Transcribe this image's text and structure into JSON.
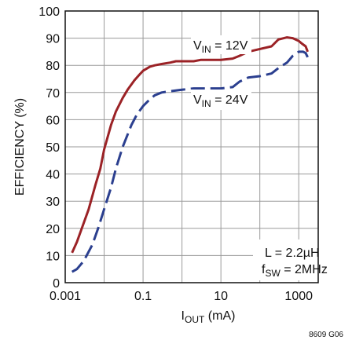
{
  "chart_data": {
    "type": "line",
    "xlabel": {
      "main": "I",
      "sub": "OUT",
      "unit": " (mA)"
    },
    "ylabel": "EFFICIENCY (%)",
    "x_scale": "log",
    "xlim": [
      0.001,
      3162
    ],
    "ylim": [
      0,
      100
    ],
    "x_ticks": [
      0.001,
      0.1,
      10,
      1000
    ],
    "x_tick_labels": [
      "0.001",
      "0.1",
      "10",
      "1000"
    ],
    "x_grid_decades": [
      0.001,
      0.01,
      0.1,
      1,
      10,
      100,
      1000
    ],
    "y_ticks": [
      0,
      10,
      20,
      30,
      40,
      50,
      60,
      70,
      80,
      90,
      100
    ],
    "y_tick_labels": [
      "0",
      "10",
      "20",
      "30",
      "40",
      "50",
      "60",
      "70",
      "80",
      "90",
      "100"
    ],
    "grid": true,
    "figure_id": "8609 G06",
    "annotation": {
      "line1": "L = 2.2µH",
      "line2_main": "f",
      "line2_sub": "SW",
      "line2_rest": " = 2MHz"
    },
    "series": [
      {
        "name": "VIN = 12V",
        "label_main": "V",
        "label_sub": "IN",
        "label_rest": " = 12V",
        "color": "#9b2226",
        "dash": "solid",
        "x": [
          0.0015,
          0.002,
          0.003,
          0.004,
          0.006,
          0.008,
          0.01,
          0.015,
          0.02,
          0.03,
          0.04,
          0.06,
          0.08,
          0.1,
          0.15,
          0.2,
          0.3,
          0.5,
          0.7,
          1,
          1.5,
          2,
          3,
          5,
          10,
          20,
          30,
          50,
          100,
          200,
          300,
          500,
          700,
          1000,
          1200,
          1500,
          1700
        ],
        "y": [
          11,
          15,
          22,
          27,
          36,
          42,
          49,
          58,
          63,
          68,
          71,
          74.5,
          76.5,
          78,
          79.5,
          80,
          80.5,
          81,
          81.5,
          81.5,
          81.5,
          81.5,
          82,
          82,
          82,
          82.5,
          83.5,
          85,
          86,
          87,
          89.5,
          90.3,
          90,
          89,
          88,
          87,
          85
        ]
      },
      {
        "name": "VIN = 24V",
        "label_main": "V",
        "label_sub": "IN",
        "label_rest": " = 24V",
        "color": "#2b3f8f",
        "dash": "dashed",
        "x": [
          0.0015,
          0.002,
          0.003,
          0.005,
          0.007,
          0.01,
          0.015,
          0.02,
          0.03,
          0.05,
          0.07,
          0.1,
          0.15,
          0.2,
          0.3,
          0.5,
          1,
          2,
          3,
          5,
          10,
          20,
          30,
          50,
          100,
          200,
          300,
          500,
          700,
          1000,
          1300,
          1500,
          1700
        ],
        "y": [
          4,
          5,
          8,
          14,
          20,
          27,
          35,
          42,
          50,
          58,
          62,
          65,
          67.5,
          69,
          70,
          70.5,
          71,
          71.5,
          71.5,
          71.5,
          71.5,
          72,
          74,
          75.5,
          76,
          77,
          79,
          81,
          83.5,
          85,
          85,
          84.5,
          83
        ]
      }
    ]
  }
}
